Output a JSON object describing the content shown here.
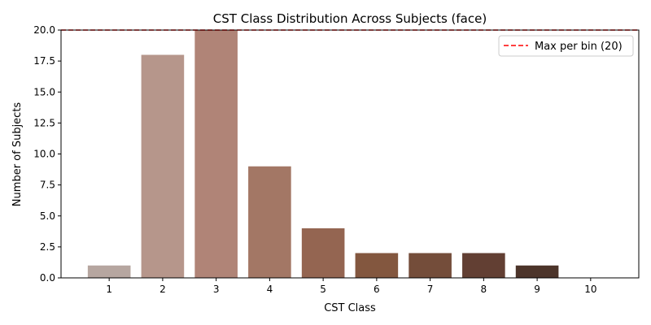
{
  "chart_data": {
    "type": "bar",
    "title": "CST Class Distribution Across Subjects (face)",
    "xlabel": "CST Class",
    "ylabel": "Number of Subjects",
    "categories": [
      "1",
      "2",
      "3",
      "4",
      "5",
      "6",
      "7",
      "8",
      "9",
      "10"
    ],
    "values": [
      1,
      18,
      20,
      9,
      4,
      2,
      2,
      2,
      1,
      0
    ],
    "bar_colors": [
      "#b6a6a0",
      "#b6968b",
      "#b08477",
      "#a37765",
      "#946551",
      "#83573f",
      "#744d3a",
      "#623f33",
      "#4c342a",
      "#3a2a22"
    ],
    "ylim": [
      0,
      20
    ],
    "yticks": [
      "0.0",
      "2.5",
      "5.0",
      "7.5",
      "10.0",
      "12.5",
      "15.0",
      "17.5",
      "20.0"
    ],
    "ytick_values": [
      0,
      2.5,
      5,
      7.5,
      10,
      12.5,
      15,
      17.5,
      20
    ],
    "xlim": [
      0.1,
      10.9
    ],
    "reference_line": {
      "label": "Max per bin (20)",
      "value": 20,
      "color": "#ff0000",
      "style": "dashed"
    },
    "legend_position": "top-right",
    "grid": false
  }
}
